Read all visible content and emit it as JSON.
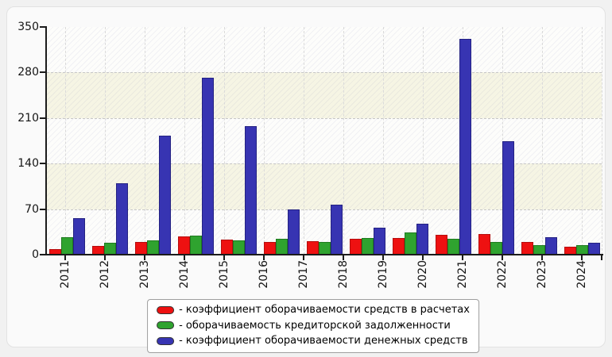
{
  "page": {
    "background": "#f1f1f1",
    "card_background": "#fafafa"
  },
  "chart_data": {
    "type": "bar",
    "title": "",
    "xlabel": "",
    "ylabel": "",
    "categories": [
      "2011",
      "2012",
      "2013",
      "2014",
      "2015",
      "2016",
      "2017",
      "2018",
      "2019",
      "2020",
      "2021",
      "2022",
      "2023",
      "2024"
    ],
    "series": [
      {
        "key": "receivables-turnover-ratio",
        "name": "коэффициент оборачиваемости средств в расчетах",
        "color": "#ee1111",
        "edge_color": "#b50d0d",
        "values": [
          8,
          13,
          19,
          28,
          23,
          19,
          21,
          25,
          26,
          30,
          32,
          19,
          12
        ]
      },
      {
        "key": "payables-turnover",
        "name": "оборачиваемость кредиторской задолженности",
        "color": "#2fa32f",
        "edge_color": "#1f7a1f",
        "values": [
          27,
          18,
          22,
          29,
          22,
          25,
          20,
          26,
          34,
          25,
          20,
          15,
          15
        ]
      },
      {
        "key": "cash-turnover-ratio",
        "name": "коэффициент оборачиваемости денежных средств",
        "color": "#3734b2",
        "edge_color": "#242282",
        "values": [
          56,
          110,
          183,
          272,
          198,
          70,
          77,
          41,
          47,
          332,
          174,
          27,
          18
        ]
      }
    ],
    "legend_dash": "-",
    "ylim": [
      0,
      350
    ],
    "yticks": [
      0,
      70,
      140,
      210,
      280,
      350
    ],
    "grid": "dashed gray; horizontal lines at yticks, vertical lines at year ticks",
    "band_fill": "alternating horizontal bands (white / pale ivory) with faint diagonal hatch",
    "legend_position": "bottom-center",
    "note": "13 bar groups are drawn evenly across the axis beneath 14 year ticks: the first group centers on the 2011 tick and the last on the 2024 tick, so middle groups drift slightly relative to their year labels (the 2017 tick falls in a gap between groups)."
  }
}
